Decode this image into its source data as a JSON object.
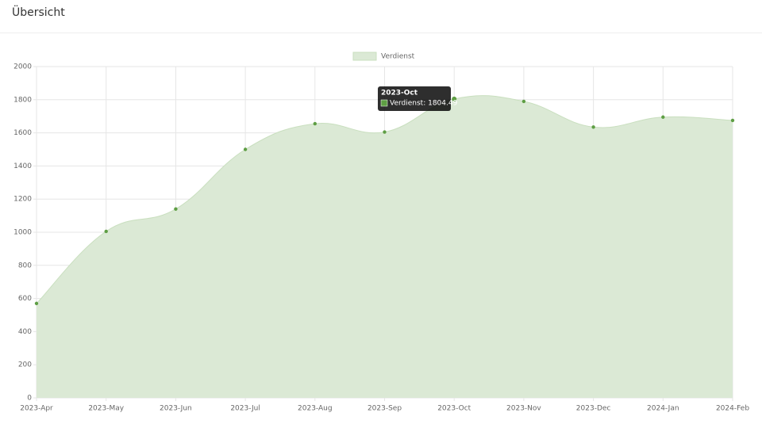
{
  "header": {
    "title": "Übersicht"
  },
  "chart_data": {
    "type": "line",
    "categories": [
      "2023-Apr",
      "2023-May",
      "2023-Jun",
      "2023-Jul",
      "2023-Aug",
      "2023-Sep",
      "2023-Oct",
      "2023-Nov",
      "2023-Dec",
      "2024-Jan",
      "2024-Feb"
    ],
    "series": [
      {
        "name": "Verdienst",
        "color": "#5e9e44",
        "fill": "#dbe9d5",
        "values": [
          570,
          1005,
          1140,
          1500,
          1655,
          1605,
          1804.49,
          1790,
          1635,
          1695,
          1675
        ]
      }
    ],
    "ylim": [
      0,
      2000
    ],
    "yticks": [
      0,
      200,
      400,
      600,
      800,
      1000,
      1200,
      1400,
      1600,
      1800,
      2000
    ],
    "grid": true,
    "smooth": true,
    "legend": "top",
    "tooltip": {
      "title": "2023-Oct",
      "label": "Verdienst: 1804.49"
    }
  }
}
